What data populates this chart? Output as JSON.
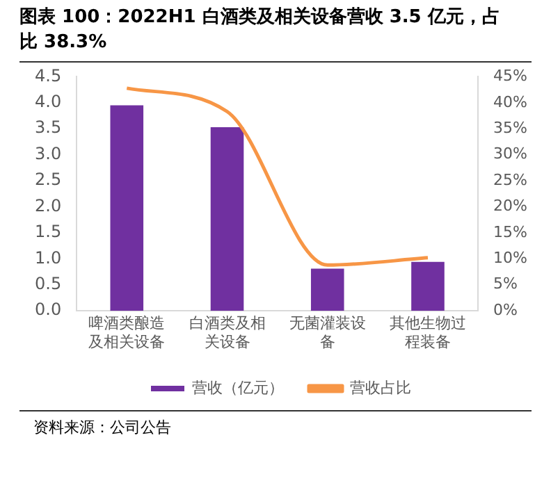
{
  "chart_data": {
    "type": "bar",
    "title": "图表 100：2022H1 白酒类及相关设备营收 3.5 亿元，占比 38.3%",
    "categories": [
      "啤酒类酿造及相关设备",
      "白酒类及相关设备",
      "无菌灌装设备",
      "其他生物过程装备"
    ],
    "series": [
      {
        "name": "营收（亿元）",
        "color": "#7030a0",
        "values": [
          3.95,
          3.53,
          0.81,
          0.94
        ]
      },
      {
        "name": "营收占比",
        "type": "line",
        "axis": "y2",
        "color": "#f79646",
        "marker": "none",
        "values": [
          42.8,
          38.3,
          8.8,
          10.2
        ]
      }
    ],
    "ylim": [
      0,
      4.5
    ],
    "yticks": [
      {
        "value": 0,
        "label": "0.0"
      },
      {
        "value": 0.5,
        "label": "0.5"
      },
      {
        "value": 1,
        "label": "1.0"
      },
      {
        "value": 1.5,
        "label": "1.5"
      },
      {
        "value": 2,
        "label": "2.0"
      },
      {
        "value": 2.5,
        "label": "2.5"
      },
      {
        "value": 3,
        "label": "3.0"
      },
      {
        "value": 3.5,
        "label": "3.5"
      },
      {
        "value": 4,
        "label": "4.0"
      },
      {
        "value": 4.5,
        "label": "4.5"
      }
    ],
    "y2lim": [
      0,
      45
    ],
    "y2ticks": [
      {
        "value": 0,
        "label": "0%"
      },
      {
        "value": 5,
        "label": "5%"
      },
      {
        "value": 10,
        "label": "10%"
      },
      {
        "value": 15,
        "label": "15%"
      },
      {
        "value": 20,
        "label": "20%"
      },
      {
        "value": 25,
        "label": "25%"
      },
      {
        "value": 30,
        "label": "30%"
      },
      {
        "value": 35,
        "label": "35%"
      },
      {
        "value": 40,
        "label": "40%"
      },
      {
        "value": 45,
        "label": "45%"
      }
    ],
    "grid": false,
    "legend": "bottom",
    "annotations": [
      "资料来源：公司公告"
    ]
  }
}
